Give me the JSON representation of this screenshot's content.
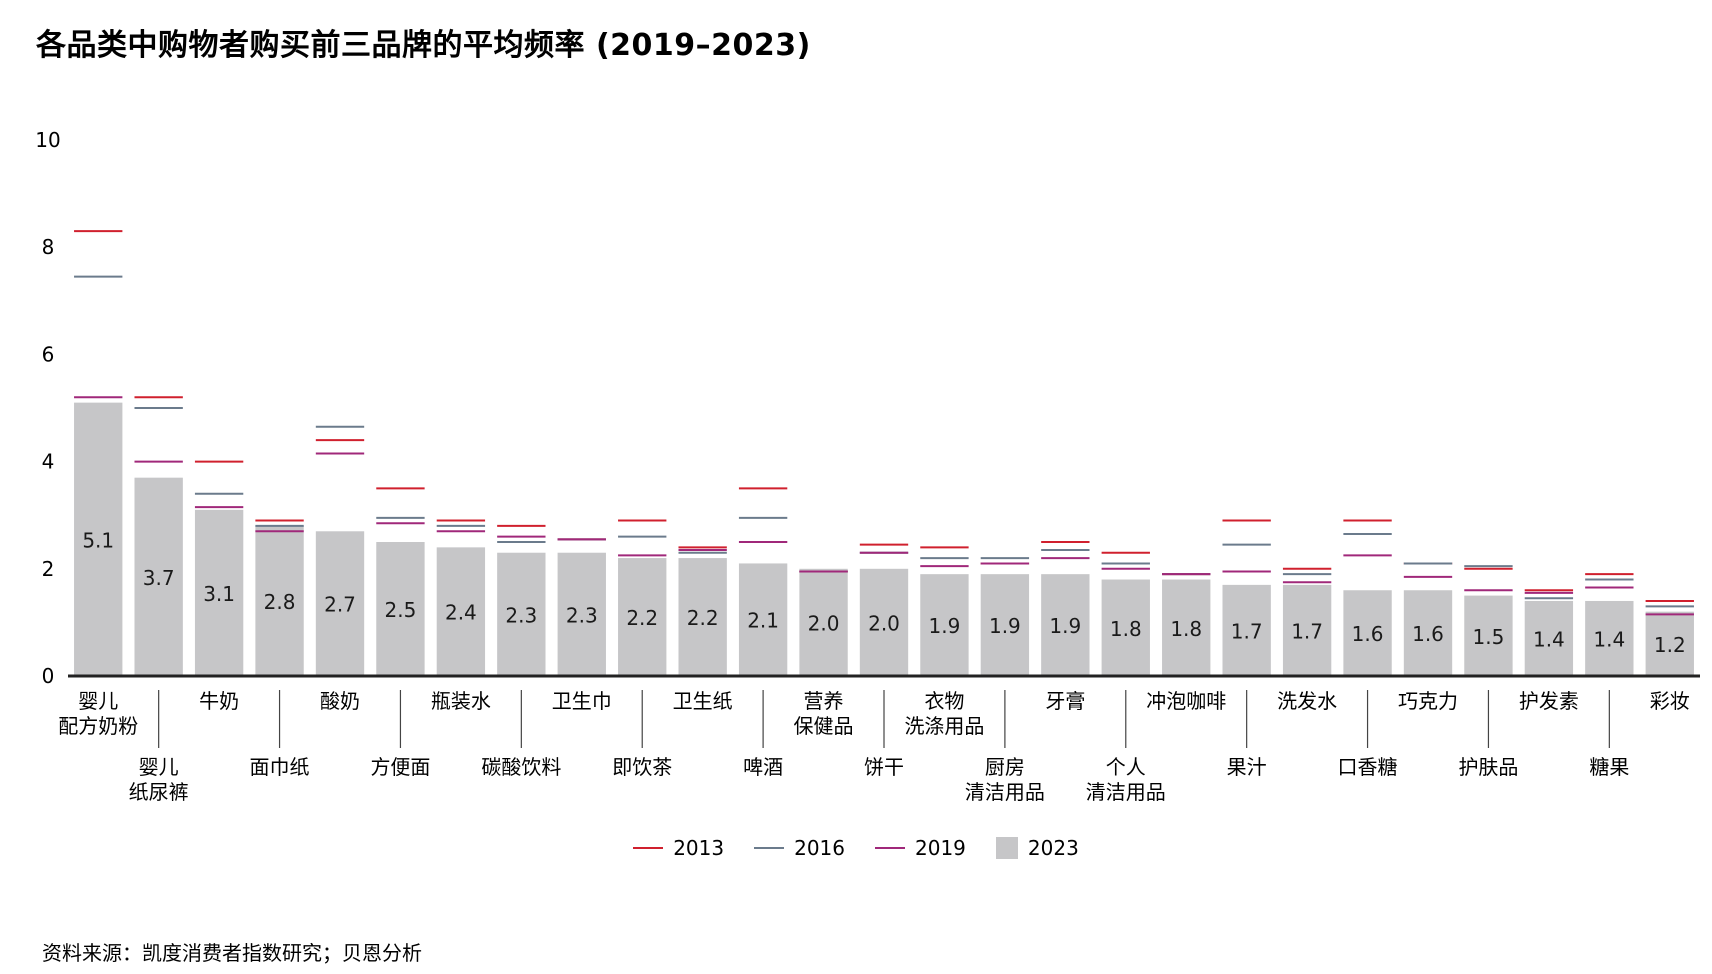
{
  "title": "各品类中购物者购买前三品牌的平均频率 (2019–2023)",
  "source": "资料来源：凯度消费者指数研究；贝恩分析",
  "legend": [
    {
      "label": "2013",
      "color": "#d0202e",
      "kind": "line"
    },
    {
      "label": "2016",
      "color": "#6b7b8c",
      "kind": "line"
    },
    {
      "label": "2019",
      "color": "#a0287a",
      "kind": "line"
    },
    {
      "label": "2023",
      "color": "#c6c6c8",
      "kind": "bar"
    }
  ],
  "chart_data": {
    "type": "bar",
    "title": "各品类中购物者购买前三品牌的平均频率 (2019–2023)",
    "ylim": [
      0,
      10
    ],
    "yticks": [
      0,
      2,
      4,
      6,
      8,
      10
    ],
    "grid": false,
    "legend_position": "bottom",
    "categories": [
      [
        "婴儿",
        "配方奶粉"
      ],
      [
        "婴儿",
        "纸尿裤"
      ],
      [
        "牛奶"
      ],
      [
        "面巾纸"
      ],
      [
        "酸奶"
      ],
      [
        "方便面"
      ],
      [
        "瓶装水"
      ],
      [
        "碳酸饮料"
      ],
      [
        "卫生巾"
      ],
      [
        "即饮茶"
      ],
      [
        "卫生纸"
      ],
      [
        "啤酒"
      ],
      [
        "营养",
        "保健品"
      ],
      [
        "饼干"
      ],
      [
        "衣物",
        "洗涤用品"
      ],
      [
        "厨房",
        "清洁用品"
      ],
      [
        "牙膏"
      ],
      [
        "个人",
        "清洁用品"
      ],
      [
        "冲泡咖啡"
      ],
      [
        "果汁"
      ],
      [
        "洗发水"
      ],
      [
        "口香糖"
      ],
      [
        "巧克力"
      ],
      [
        "护肤品"
      ],
      [
        "护发素"
      ],
      [
        "糖果"
      ],
      [
        "彩妆"
      ]
    ],
    "series": [
      {
        "name": "2013",
        "type": "marker",
        "color": "#d0202e",
        "values": [
          8.3,
          5.2,
          4.0,
          2.9,
          4.4,
          3.5,
          2.9,
          2.8,
          2.55,
          2.9,
          2.4,
          3.5,
          1.95,
          2.45,
          2.4,
          2.1,
          2.5,
          2.3,
          1.9,
          2.9,
          2.0,
          2.9,
          2.1,
          2.0,
          1.6,
          1.9,
          1.4
        ]
      },
      {
        "name": "2016",
        "type": "marker",
        "color": "#6b7b8c",
        "values": [
          7.45,
          5.0,
          3.4,
          2.8,
          4.65,
          2.95,
          2.8,
          2.5,
          2.55,
          2.6,
          2.3,
          2.95,
          1.95,
          2.3,
          2.2,
          2.2,
          2.35,
          2.1,
          1.9,
          2.45,
          1.9,
          2.65,
          2.1,
          2.05,
          1.45,
          1.8,
          1.3
        ]
      },
      {
        "name": "2019",
        "type": "marker",
        "color": "#a0287a",
        "values": [
          5.2,
          4.0,
          3.15,
          2.7,
          4.15,
          2.85,
          2.7,
          2.6,
          2.55,
          2.25,
          2.35,
          2.5,
          1.95,
          2.3,
          2.05,
          2.1,
          2.2,
          2.0,
          1.9,
          1.95,
          1.75,
          2.25,
          1.85,
          1.6,
          1.55,
          1.65,
          1.15
        ]
      },
      {
        "name": "2023",
        "type": "bar",
        "color": "#c6c6c8",
        "values": [
          5.1,
          3.7,
          3.1,
          2.8,
          2.7,
          2.5,
          2.4,
          2.3,
          2.3,
          2.2,
          2.2,
          2.1,
          2.0,
          2.0,
          1.9,
          1.9,
          1.9,
          1.8,
          1.8,
          1.7,
          1.7,
          1.6,
          1.6,
          1.5,
          1.4,
          1.4,
          1.2
        ]
      }
    ]
  }
}
